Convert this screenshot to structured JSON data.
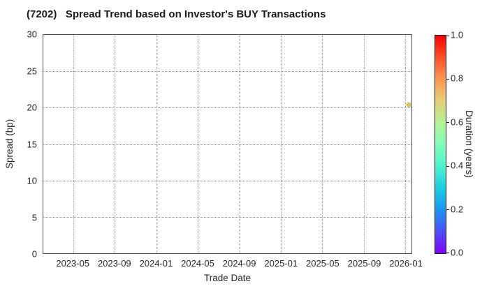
{
  "title": "(7202)   Spread Trend based on Investor's BUY Transactions",
  "chart_data": {
    "type": "scatter",
    "title": "(7202)   Spread Trend based on Investor's BUY Transactions",
    "xlabel": "Trade Date",
    "ylabel": "Spread (bp)",
    "x_tick_labels": [
      "2023-05",
      "2023-09",
      "2024-01",
      "2024-05",
      "2024-09",
      "2025-01",
      "2025-05",
      "2025-09",
      "2026-01"
    ],
    "x_tick_months": [
      4,
      8,
      12,
      16,
      20,
      24,
      28,
      32,
      36
    ],
    "xlim_months": [
      1.1,
      36.6
    ],
    "y_ticks": [
      0,
      5,
      10,
      15,
      20,
      25,
      30
    ],
    "ylim": [
      0,
      30
    ],
    "grid": "dotted",
    "legend": "none",
    "points": [
      {
        "date": "2026-01",
        "x_months": 36.3,
        "spread_bp": 20.4,
        "duration_years": 0.7,
        "color": "#d2c55a"
      }
    ],
    "colorbar": {
      "label": "Duration (years)",
      "colormap": "rainbow",
      "range": [
        0,
        1
      ],
      "tick_values": [
        0,
        0.2,
        0.4,
        0.6,
        0.8,
        1.0
      ],
      "tick_labels": [
        "0.0",
        "0.2",
        "0.4",
        "0.6",
        "0.8",
        "1.0"
      ],
      "gradient_stops": [
        {
          "value": 0.0,
          "color": "#8000ff"
        },
        {
          "value": 0.1,
          "color": "#4d4ffc"
        },
        {
          "value": 0.2,
          "color": "#1996f3"
        },
        {
          "value": 0.3,
          "color": "#1acee3"
        },
        {
          "value": 0.4,
          "color": "#4df3ce"
        },
        {
          "value": 0.5,
          "color": "#80ffb5"
        },
        {
          "value": 0.6,
          "color": "#b3f396"
        },
        {
          "value": 0.7,
          "color": "#e6ce74"
        },
        {
          "value": 0.8,
          "color": "#ff964f"
        },
        {
          "value": 0.9,
          "color": "#ff4f28"
        },
        {
          "value": 1.0,
          "color": "#ff0000"
        }
      ]
    }
  },
  "colors": {
    "background": "#ffffff",
    "text": "#262626",
    "title_text": "#1a1a1a",
    "grid": "#969696",
    "spine": "#4d4d4d"
  }
}
